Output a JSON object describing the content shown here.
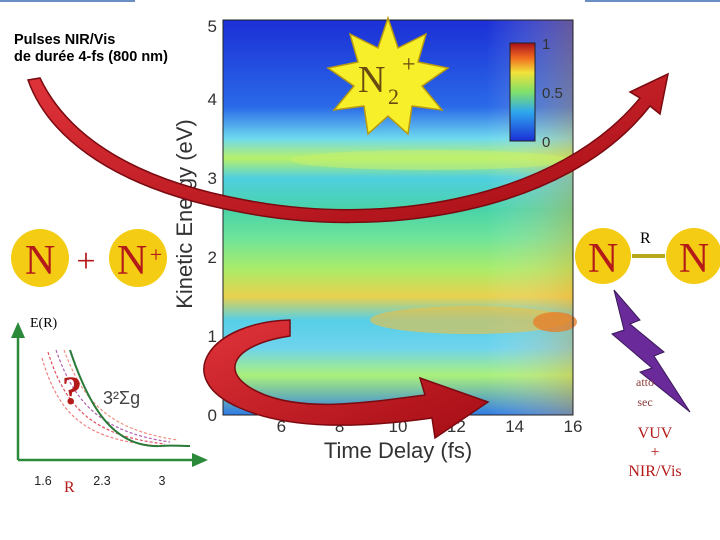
{
  "labels": {
    "pulse_line1": "Pulses NIR/Vis",
    "pulse_line2": "de durée 4-fs (800 nm)",
    "molecular_ion": "N2+",
    "atom_left": "N",
    "plus_sign": "+",
    "ion_right": "N+",
    "atom_n_left": "N",
    "atom_n_right": "N",
    "bond_label": "R",
    "energy_axis_label": "E(R)",
    "distance_axis_label": "R",
    "question_mark": "?",
    "state_label": "3²Σg",
    "atto_line1": "atto",
    "atto_line2": "sec",
    "vuv_line1": "VUV",
    "vuv_line2": "+",
    "vuv_line3": "NIR/Vis"
  },
  "chart_data": {
    "type": "heatmap",
    "xlabel": "Time Delay (fs)",
    "ylabel": "Kinetic Energy (eV)",
    "x_ticks": [
      6,
      8,
      10,
      12,
      14,
      16
    ],
    "y_ticks": [
      0,
      1,
      2,
      3,
      4,
      5
    ],
    "xlim": [
      4,
      16
    ],
    "ylim": [
      0,
      5
    ],
    "colorbar": {
      "ticks": [
        0,
        0.5,
        1
      ],
      "range": [
        0,
        1
      ]
    },
    "notable_bands_eV": [
      3.1,
      2.3,
      1.5,
      1.0,
      0.5
    ]
  },
  "inset_chart": {
    "x_ticks": [
      "1.6",
      "2.3",
      "3"
    ]
  },
  "colors": {
    "burst_fill": "#f7ef2a",
    "atom_fill": "#f3cc13",
    "atom_text": "#b41a1a",
    "arrow_red": "#c8101a",
    "bolt_purple": "#6a2a9a",
    "axis_green": "#2a8a3a"
  }
}
